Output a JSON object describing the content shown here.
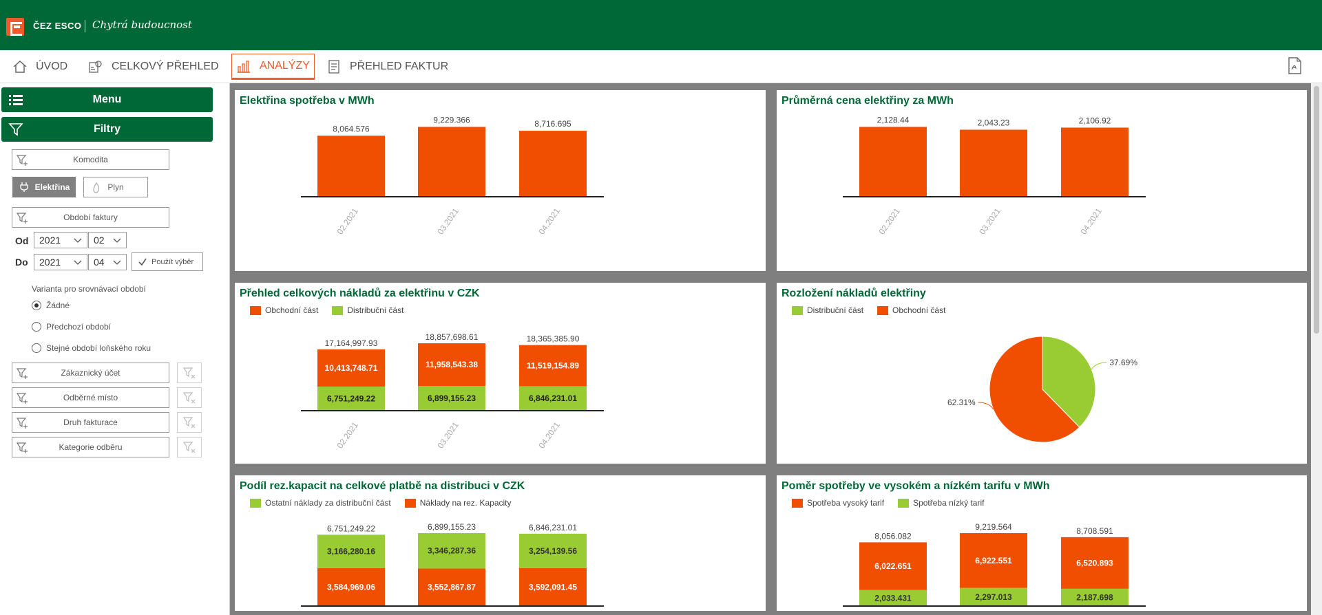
{
  "header": {
    "brand": "ČEZ ESCO",
    "tagline": "Chytrá budoucnost"
  },
  "nav": {
    "items": [
      {
        "label": "ÚVOD",
        "icon": "home-icon"
      },
      {
        "label": "CELKOVÝ PŘEHLED",
        "icon": "overview-icon"
      },
      {
        "label": "ANALÝZY",
        "icon": "analytics-icon",
        "active": true
      },
      {
        "label": "PŘEHLED FAKTUR",
        "icon": "invoice-icon"
      }
    ],
    "export_icon": "pdf-export-icon"
  },
  "sidebar": {
    "menu_label": "Menu",
    "filters_label": "Filtry",
    "commodity_label": "Komodita",
    "commodity_options": [
      "Elektřina",
      "Plyn"
    ],
    "commodity_selected": "Elektřina",
    "period_label": "Období faktury",
    "from_label": "Od",
    "to_label": "Do",
    "from_year": "2021",
    "from_month": "02",
    "to_year": "2021",
    "to_month": "04",
    "apply_label": "Použít výběr",
    "compare_title": "Varianta pro srovnávací období",
    "compare_options": [
      "Žádné",
      "Předchozí období",
      "Stejné období loňského roku"
    ],
    "compare_selected": "Žádné",
    "extra_filters": [
      "Zákaznický účet",
      "Odběrné místo",
      "Druh fakturace",
      "Kategorie odběru"
    ]
  },
  "colors": {
    "brand_green": "#006837",
    "accent_orange": "#f05a28",
    "bar_orange": "#f04e00",
    "bar_green": "#99cc33"
  },
  "chart_data": [
    {
      "id": "consumption",
      "title": "Elektřina spotřeba v MWh",
      "type": "bar",
      "categories": [
        "02.2021",
        "03.2021",
        "04.2021"
      ],
      "values": [
        8064.576,
        9229.366,
        8716.695
      ],
      "value_labels": [
        "8,064.576",
        "9,229.366",
        "8,716.695"
      ]
    },
    {
      "id": "avg_price",
      "title": "Průměrná cena elektřiny za MWh",
      "type": "bar",
      "categories": [
        "02.2021",
        "03.2021",
        "04.2021"
      ],
      "values": [
        2128.44,
        2043.23,
        2106.92
      ],
      "value_labels": [
        "2,128.44",
        "2,043.23",
        "2,106.92"
      ]
    },
    {
      "id": "total_costs",
      "title": "Přehled celkových nákladů za elektřinu v CZK",
      "type": "bar",
      "stacked": true,
      "categories": [
        "02.2021",
        "03.2021",
        "04.2021"
      ],
      "totals": [
        "17,164,997.93",
        "18,857,698.61",
        "18,365,385.90"
      ],
      "series": [
        {
          "name": "Obchodní část",
          "values": [
            10413748.71,
            11958543.38,
            11519154.89
          ],
          "labels": [
            "10,413,748.71",
            "11,958,543.38",
            "11,519,154.89"
          ]
        },
        {
          "name": "Distribuční část",
          "values": [
            6751249.22,
            6899155.23,
            6846231.01
          ],
          "labels": [
            "6,751,249.22",
            "6,899,155.23",
            "6,846,231.01"
          ]
        }
      ]
    },
    {
      "id": "cost_split",
      "title": "Rozložení nákladů elektřiny",
      "type": "pie",
      "slices": [
        {
          "name": "Distribuční část",
          "value": 37.69,
          "label": "37.69%"
        },
        {
          "name": "Obchodní část",
          "value": 62.31,
          "label": "62.31%"
        }
      ]
    },
    {
      "id": "reserved_capacity",
      "title": "Podíl rez.kapacit na celkové platbě na distribuci v CZK",
      "type": "bar",
      "stacked": true,
      "categories": [
        "02.2021",
        "03.2021",
        "04.2021"
      ],
      "totals": [
        "6,751,249.22",
        "6,899,155.23",
        "6,846,231.01"
      ],
      "series": [
        {
          "name": "Ostatní náklady za distribuční část",
          "values": [
            3166280.16,
            3346287.36,
            3254139.56
          ],
          "labels": [
            "3,166,280.16",
            "3,346,287.36",
            "3,254,139.56"
          ]
        },
        {
          "name": "Náklady na rez. Kapacity",
          "values": [
            3584969.06,
            3552867.87,
            3592091.45
          ],
          "labels": [
            "3,584,969.06",
            "3,552,867.87",
            "3,592,091.45"
          ]
        }
      ]
    },
    {
      "id": "tariff_ratio",
      "title": "Poměr spotřeby ve vysokém a nízkém tarifu v MWh",
      "type": "bar",
      "stacked": true,
      "categories": [
        "02.2021",
        "03.2021",
        "04.2021"
      ],
      "totals": [
        "8,056.082",
        "9,219.564",
        "8,708.591"
      ],
      "series": [
        {
          "name": "Spotřeba vysoký tarif",
          "values": [
            6022.651,
            6922.551,
            6520.893
          ],
          "labels": [
            "6,022.651",
            "6,922.551",
            "6,520.893"
          ]
        },
        {
          "name": "Spotřeba nízký tarif",
          "values": [
            2033.431,
            2297.013,
            2187.698
          ],
          "labels": [
            "2,033.431",
            "2,297.013",
            "2,187.698"
          ]
        }
      ]
    }
  ]
}
